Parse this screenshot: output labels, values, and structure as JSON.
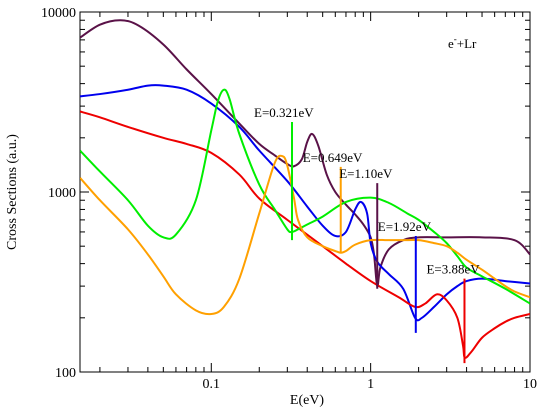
{
  "chart_data": {
    "type": "line",
    "title": "",
    "reaction_label": {
      "base": "e",
      "sup": "-",
      "rest": "+Lr"
    },
    "xlabel": "E(eV)",
    "ylabel": "Cross Sections (a.u.)",
    "xscale": "log",
    "yscale": "log",
    "xlim": [
      0.015,
      10
    ],
    "ylim": [
      100,
      10000
    ],
    "grid": false,
    "x_ticks": [
      {
        "value": 0.1,
        "label": "0.1"
      },
      {
        "value": 1,
        "label": "1"
      },
      {
        "value": 10,
        "label": "10"
      }
    ],
    "y_ticks": [
      {
        "value": 100,
        "label": "100"
      },
      {
        "value": 1000,
        "label": "1000"
      },
      {
        "value": 10000,
        "label": "10000"
      }
    ],
    "series": [
      {
        "color": "#5a1248",
        "x": [
          0.015,
          0.02,
          0.027,
          0.035,
          0.05,
          0.07,
          0.1,
          0.15,
          0.2,
          0.25,
          0.3,
          0.33,
          0.37,
          0.4,
          0.43,
          0.47,
          0.53,
          0.6,
          0.7,
          0.8,
          0.9,
          1.0,
          1.05,
          1.1,
          1.15,
          1.3,
          1.6,
          2.0,
          3.0,
          5.0,
          8.0,
          10.0
        ],
        "y": [
          7200,
          8500,
          9000,
          8400,
          6600,
          4800,
          3500,
          2400,
          1850,
          1600,
          1430,
          1390,
          1520,
          1900,
          2100,
          1800,
          1250,
          1000,
          850,
          750,
          660,
          560,
          450,
          300,
          380,
          480,
          540,
          560,
          560,
          560,
          540,
          450
        ]
      },
      {
        "color": "#0000ee",
        "x": [
          0.015,
          0.02,
          0.03,
          0.04,
          0.05,
          0.07,
          0.1,
          0.15,
          0.2,
          0.3,
          0.4,
          0.5,
          0.6,
          0.7,
          0.8,
          0.87,
          0.95,
          1.0,
          1.1,
          1.3,
          1.6,
          1.9,
          2.1,
          2.5,
          3.0,
          3.5,
          4.0,
          5.0,
          7.0,
          10.0
        ],
        "y": [
          3400,
          3500,
          3700,
          3900,
          3900,
          3700,
          3100,
          2300,
          1700,
          1150,
          830,
          650,
          570,
          600,
          800,
          880,
          760,
          520,
          410,
          350,
          290,
          200,
          200,
          230,
          270,
          300,
          320,
          330,
          320,
          310
        ]
      },
      {
        "color": "#ee0000",
        "x": [
          0.015,
          0.02,
          0.03,
          0.05,
          0.07,
          0.1,
          0.15,
          0.2,
          0.3,
          0.5,
          0.7,
          1.0,
          1.5,
          1.9,
          2.2,
          2.6,
          3.0,
          3.5,
          3.8,
          3.9,
          4.3,
          5.0,
          6.0,
          7.0,
          8.0,
          10.0
        ],
        "y": [
          2800,
          2600,
          2300,
          2000,
          1850,
          1650,
          1250,
          920,
          700,
          500,
          400,
          320,
          260,
          230,
          240,
          270,
          250,
          200,
          140,
          120,
          130,
          155,
          175,
          190,
          200,
          210
        ]
      },
      {
        "color": "#00ee00",
        "x": [
          0.015,
          0.02,
          0.03,
          0.04,
          0.05,
          0.06,
          0.08,
          0.1,
          0.11,
          0.12,
          0.13,
          0.15,
          0.2,
          0.25,
          0.3,
          0.32,
          0.35,
          0.4,
          0.5,
          0.7,
          1.0,
          1.3,
          1.7,
          2.0,
          2.5,
          3.0,
          3.5,
          4.0,
          5.0,
          7.0,
          10.0
        ],
        "y": [
          1700,
          1300,
          900,
          650,
          560,
          580,
          900,
          2200,
          3200,
          3700,
          3300,
          2100,
          1100,
          800,
          620,
          600,
          620,
          660,
          730,
          880,
          930,
          870,
          760,
          700,
          600,
          520,
          440,
          380,
          340,
          290,
          240
        ]
      },
      {
        "color": "#ffa000",
        "x": [
          0.015,
          0.02,
          0.03,
          0.04,
          0.05,
          0.06,
          0.08,
          0.1,
          0.12,
          0.15,
          0.2,
          0.25,
          0.28,
          0.3,
          0.33,
          0.35,
          0.4,
          0.5,
          0.6,
          0.65,
          0.7,
          0.8,
          1.0,
          1.3,
          1.6,
          2.0,
          2.5,
          3.0,
          3.5,
          4.0,
          5.0,
          6.0,
          7.0,
          8.0,
          10.0
        ],
        "y": [
          1200,
          900,
          620,
          450,
          340,
          270,
          220,
          210,
          230,
          330,
          760,
          1450,
          1580,
          1400,
          930,
          700,
          560,
          500,
          470,
          460,
          470,
          510,
          540,
          540,
          540,
          540,
          520,
          500,
          460,
          420,
          370,
          330,
          300,
          280,
          260
        ]
      }
    ],
    "thresholds": [
      {
        "label": "E=0.321eV",
        "x": 0.321,
        "color": "#00ee00",
        "y_top": 2450,
        "y_bottom": 540
      },
      {
        "label": "E=0.649eV",
        "x": 0.649,
        "color": "#ffa000",
        "y_top": 1380,
        "y_bottom": 460
      },
      {
        "label": "E=1.10eV",
        "x": 1.1,
        "color": "#5a1248",
        "y_top": 1120,
        "y_bottom": 290
      },
      {
        "label": "E=1.92eV",
        "x": 1.92,
        "color": "#0000ee",
        "y_top": 570,
        "y_bottom": 165
      },
      {
        "label": "E=3.88eV",
        "x": 3.88,
        "color": "#ee0000",
        "y_top": 330,
        "y_bottom": 112
      }
    ]
  }
}
